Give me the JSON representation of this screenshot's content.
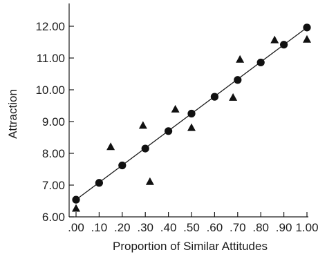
{
  "chart_data": {
    "type": "scatter",
    "title": "",
    "xlabel": "Proportion of Similar Attitudes",
    "ylabel": "Attraction",
    "xlim": [
      0,
      1
    ],
    "ylim": [
      6,
      12.8
    ],
    "grid": false,
    "x_ticks": [
      ".00",
      ".10",
      ".20",
      ".30",
      ".40",
      ".50",
      ".60",
      ".70",
      ".80",
      ".90",
      "1.00"
    ],
    "y_ticks": [
      "6.00",
      "7.00",
      "8.00",
      "9.00",
      "10.00",
      "11.00",
      "12.00"
    ],
    "series": [
      {
        "marker": "circle",
        "x": [
          0.0,
          0.1,
          0.2,
          0.3,
          0.4,
          0.5,
          0.6,
          0.7,
          0.8,
          0.9,
          1.0
        ],
        "y": [
          6.54,
          7.07,
          7.62,
          8.15,
          8.7,
          9.25,
          9.78,
          10.31,
          10.86,
          11.42,
          11.96
        ]
      },
      {
        "marker": "triangle",
        "x": [
          0.0,
          0.15,
          0.29,
          0.32,
          0.43,
          0.5,
          0.68,
          0.71,
          0.86,
          1.0
        ],
        "y": [
          6.26,
          8.2,
          8.87,
          7.1,
          9.38,
          8.8,
          9.75,
          10.95,
          11.56,
          11.58
        ]
      }
    ],
    "trend_line": {
      "x": [
        0.0,
        1.0
      ],
      "y": [
        6.54,
        11.96
      ]
    }
  }
}
